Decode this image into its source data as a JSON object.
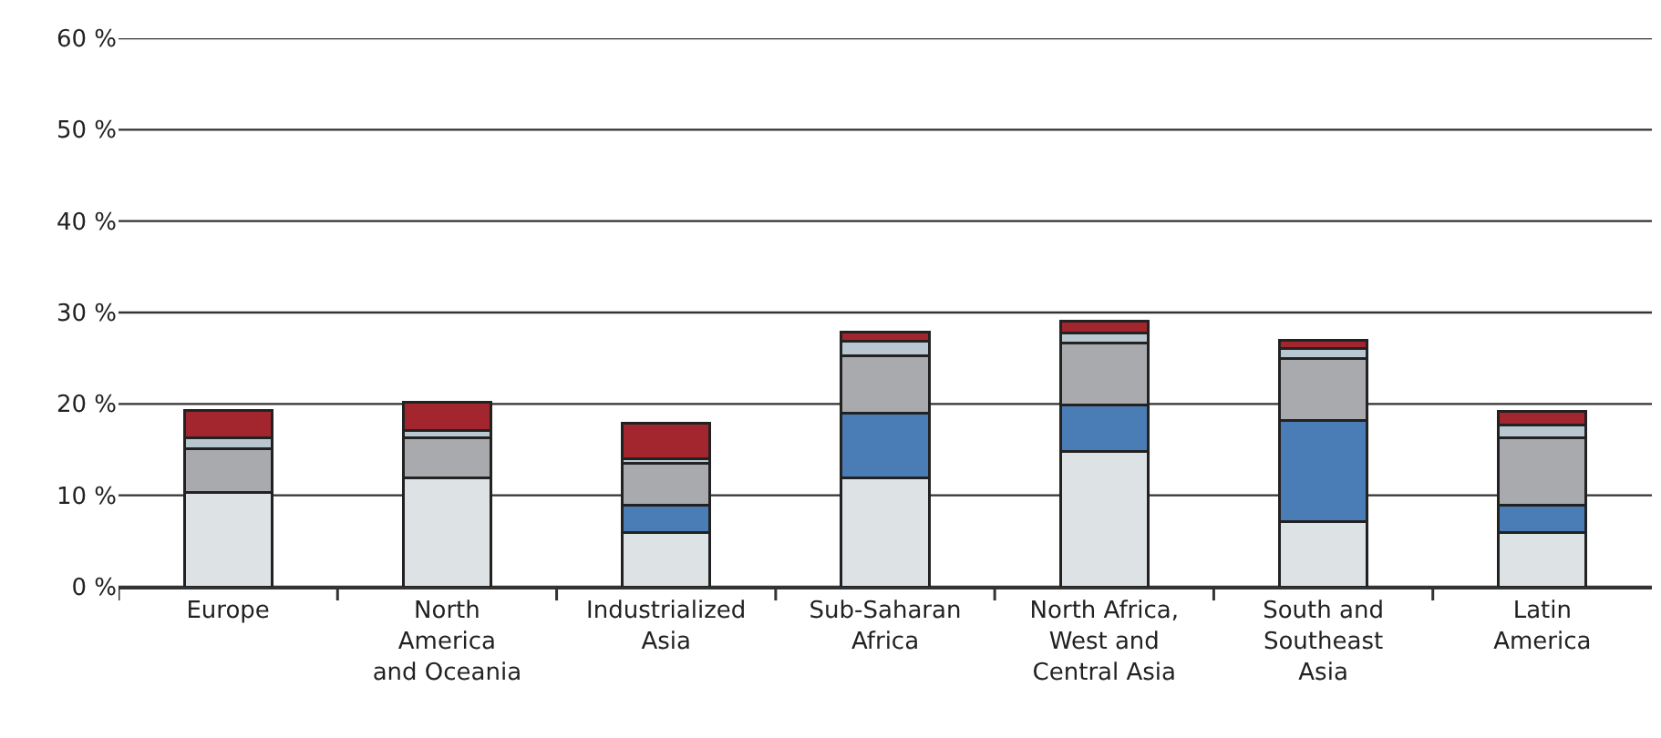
{
  "chart_data": {
    "type": "bar",
    "stacked": true,
    "categories": [
      "Europe",
      "North\nAmerica\nand Oceania",
      "Industrialized\nAsia",
      "Sub-Saharan\nAfrica",
      "North Africa,\nWest and\nCentral Asia",
      "South and\nSoutheast\nAsia",
      "Latin\nAmerica"
    ],
    "series": [
      {
        "color": "#dde2e5",
        "values": [
          10.3,
          11.9,
          5.9,
          11.9,
          14.8,
          7.1,
          5.9
        ]
      },
      {
        "color": "#4a7db5",
        "values": [
          0,
          0,
          3.0,
          7.1,
          5.1,
          11.1,
          3.0
        ]
      },
      {
        "color": "#a9aaad",
        "values": [
          4.8,
          4.4,
          4.6,
          6.3,
          6.8,
          6.8,
          7.4
        ]
      },
      {
        "color": "#b8c7d0",
        "values": [
          1.2,
          0.8,
          0.5,
          1.6,
          1.1,
          1.1,
          1.4
        ]
      },
      {
        "color": "#a3262e",
        "values": [
          3.0,
          3.1,
          3.9,
          1.0,
          1.3,
          0.9,
          1.5
        ]
      }
    ],
    "ylim": [
      0,
      60
    ],
    "yticks": [
      {
        "value": 0,
        "label": "0 %"
      },
      {
        "value": 10,
        "label": "10 %"
      },
      {
        "value": 20,
        "label": "20 %"
      },
      {
        "value": 30,
        "label": "30 %"
      },
      {
        "value": 40,
        "label": "40 %"
      },
      {
        "value": 50,
        "label": "50 %"
      },
      {
        "value": 60,
        "label": "60 %"
      }
    ],
    "grid": "y"
  }
}
